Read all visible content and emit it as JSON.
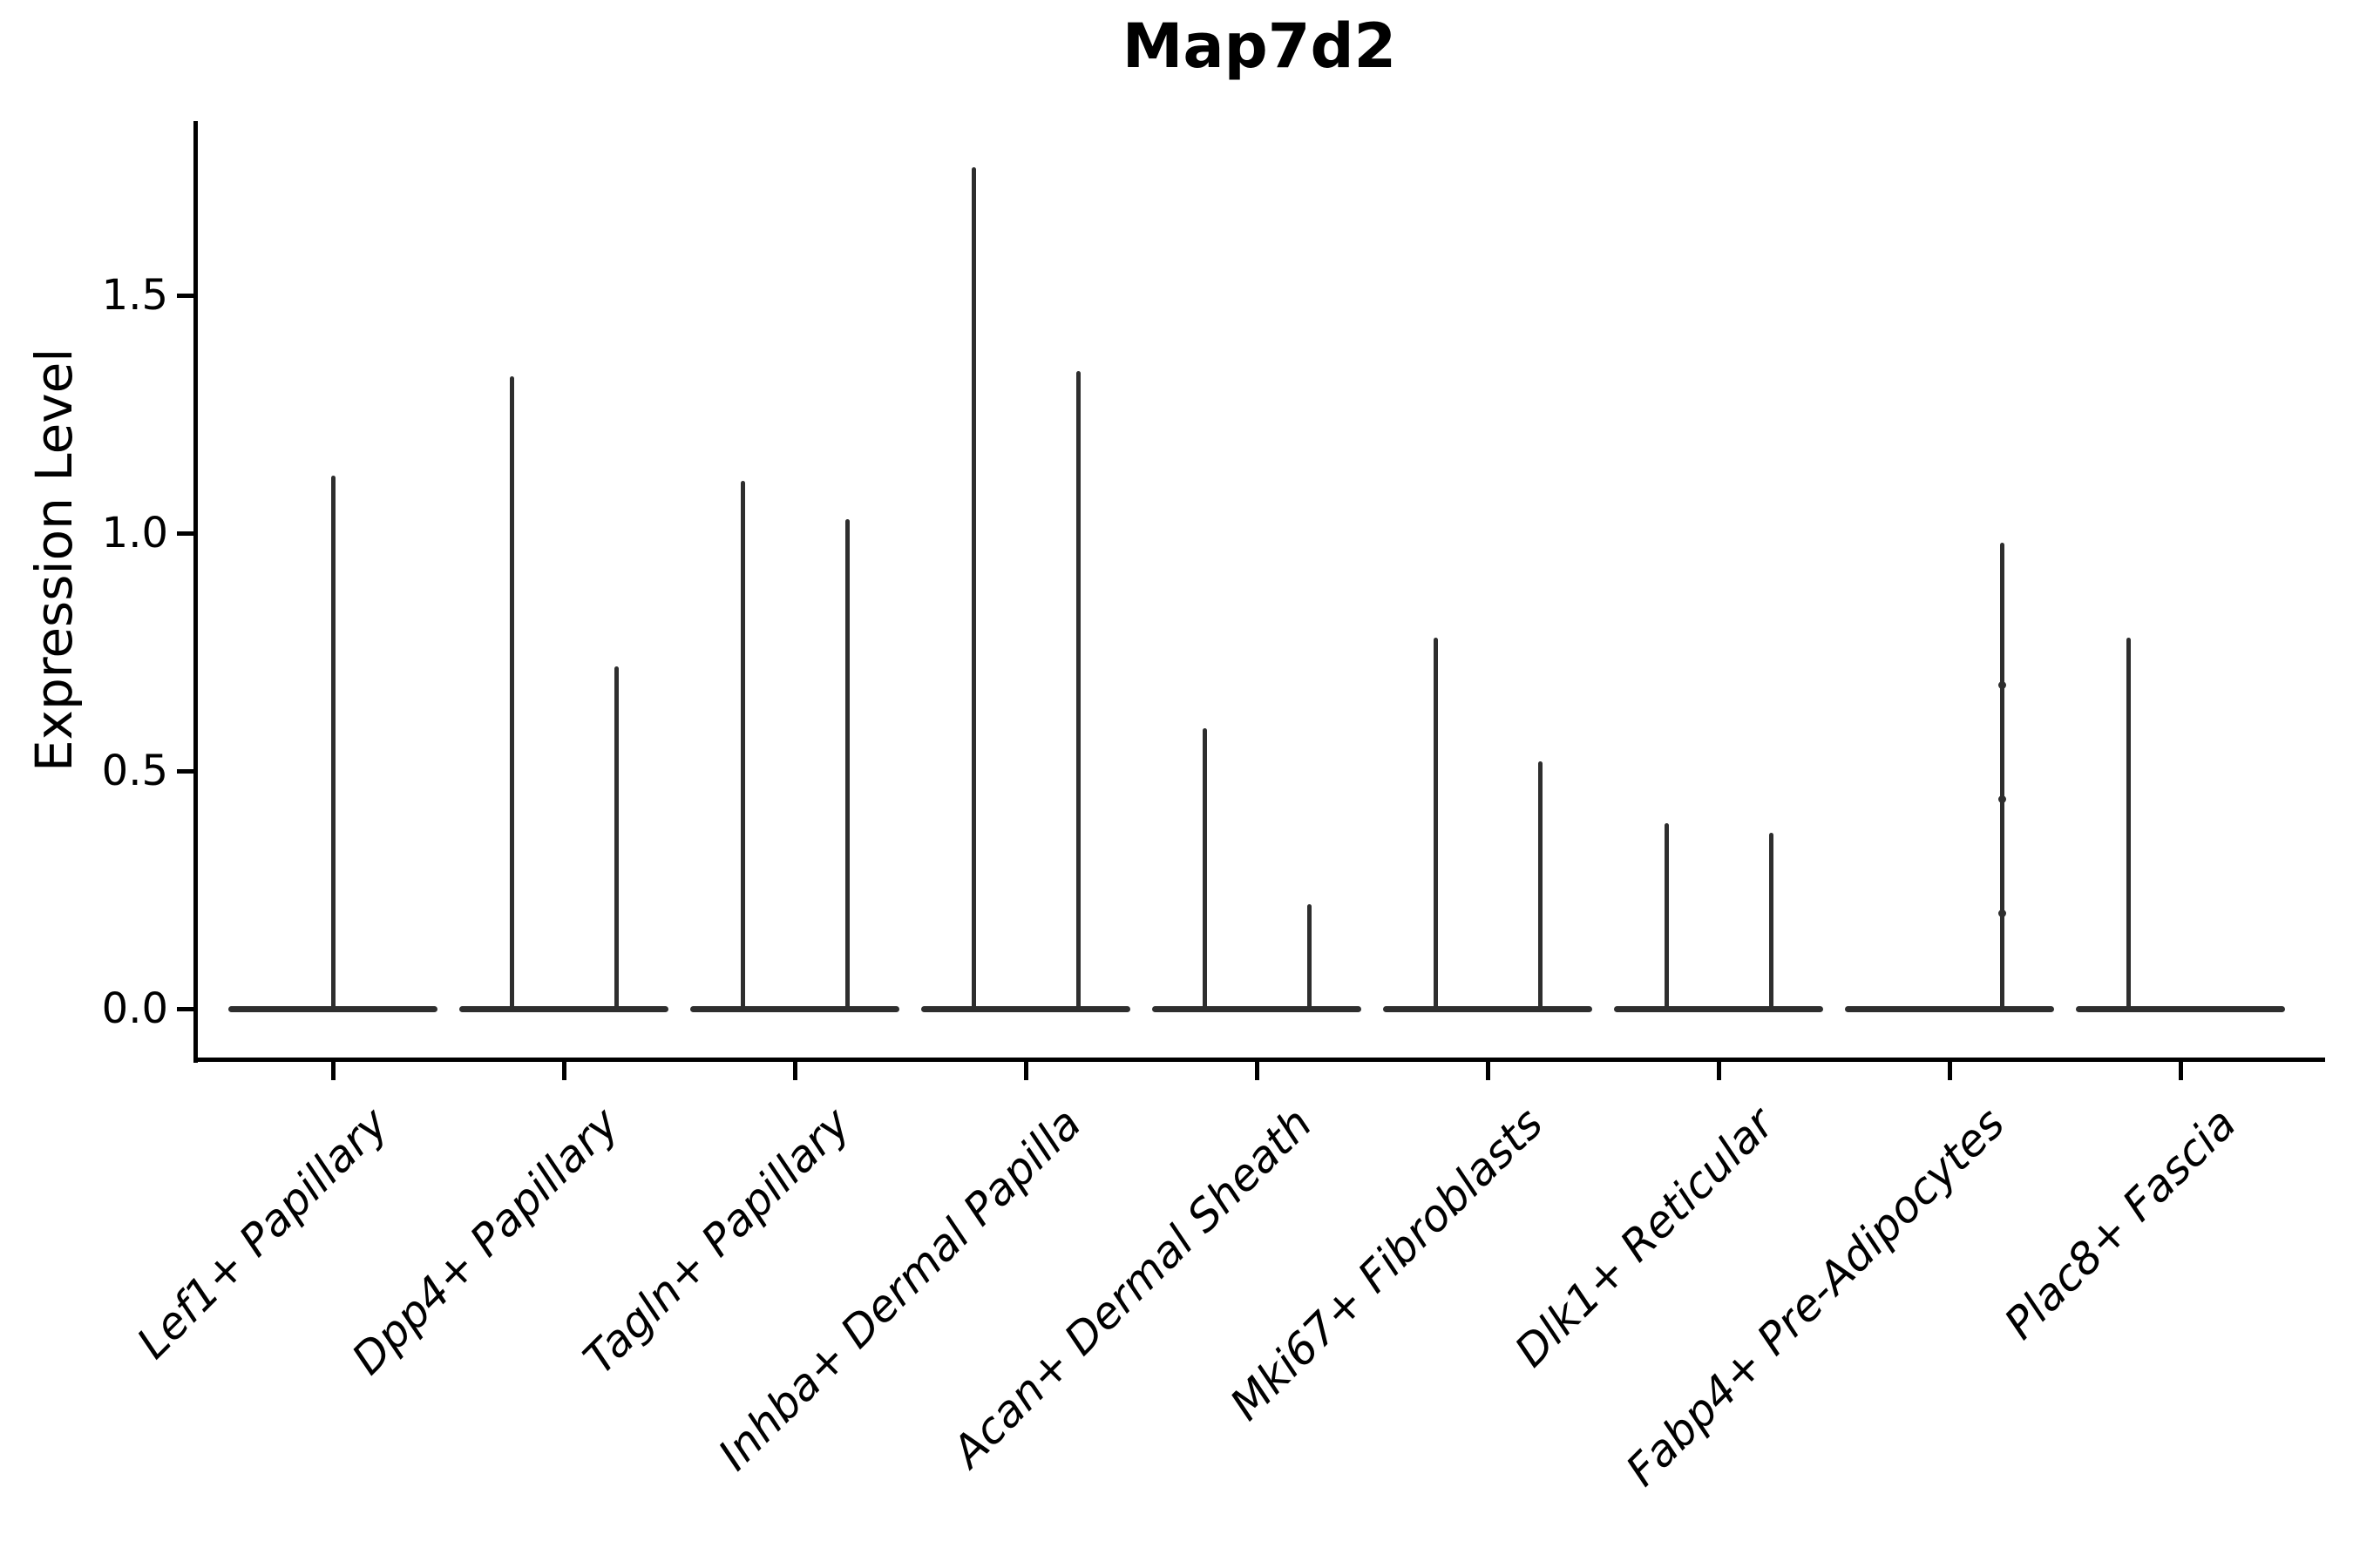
{
  "chart_data": {
    "type": "violin",
    "title": "Map7d2",
    "ylabel": "Expression Level",
    "ylim": [
      -0.11,
      1.86
    ],
    "yticks": [
      0.0,
      0.5,
      1.0,
      1.5
    ],
    "ytick_labels": [
      "0.0",
      "0.5",
      "1.0",
      "1.5"
    ],
    "grid": false,
    "legend": "none",
    "categories": [
      "Lef1+ Papillary",
      "Dpp4+ Papillary",
      "Tagln+ Papillary",
      "Inhba+ Dermal Papilla",
      "Acan+ Dermal Sheath",
      "Mki67+ Fibroblasts",
      "Dlk1+ Reticular",
      "Fabp4+ Pre-Adipocytes",
      "Plac8+ Fascia"
    ],
    "violins": [
      {
        "category": "Lef1+ Papillary",
        "split": false,
        "groups": [
          {
            "position": "center",
            "max": 1.12,
            "dots": []
          }
        ]
      },
      {
        "category": "Dpp4+ Papillary",
        "split": true,
        "groups": [
          {
            "position": "left",
            "max": 1.33,
            "dots": []
          },
          {
            "position": "right",
            "max": 0.72,
            "dots": []
          }
        ]
      },
      {
        "category": "Tagln+ Papillary",
        "split": true,
        "groups": [
          {
            "position": "left",
            "max": 1.11,
            "dots": []
          },
          {
            "position": "right",
            "max": 1.03,
            "dots": []
          }
        ]
      },
      {
        "category": "Inhba+ Dermal Papilla",
        "split": true,
        "groups": [
          {
            "position": "left",
            "max": 1.77,
            "dots": []
          },
          {
            "position": "right",
            "max": 1.34,
            "dots": []
          }
        ]
      },
      {
        "category": "Acan+ Dermal Sheath",
        "split": true,
        "groups": [
          {
            "position": "left",
            "max": 0.59,
            "dots": []
          },
          {
            "position": "right",
            "max": 0.22,
            "dots": []
          }
        ]
      },
      {
        "category": "Mki67+ Fibroblasts",
        "split": true,
        "groups": [
          {
            "position": "left",
            "max": 0.78,
            "dots": []
          },
          {
            "position": "right",
            "max": 0.52,
            "dots": []
          }
        ]
      },
      {
        "category": "Dlk1+ Reticular",
        "split": true,
        "groups": [
          {
            "position": "left",
            "max": 0.39,
            "dots": []
          },
          {
            "position": "right",
            "max": 0.37,
            "dots": []
          }
        ]
      },
      {
        "category": "Fabp4+ Pre-Adipocytes",
        "split": true,
        "groups": [
          {
            "position": "left",
            "max": 0.0,
            "dots": []
          },
          {
            "position": "right",
            "max": 0.98,
            "dots": [
              0.68,
              0.44,
              0.2
            ]
          }
        ]
      },
      {
        "category": "Plac8+ Fascia",
        "split": true,
        "groups": [
          {
            "position": "left",
            "max": 0.78,
            "dots": []
          },
          {
            "position": "right",
            "max": 0.0,
            "dots": []
          }
        ]
      }
    ],
    "colors": {
      "violin_line": "#2e2e2e",
      "axis": "#000000",
      "background": "#ffffff"
    },
    "notes": "Flat violins at 0 with thin max-expression spikes; no fill visible; left and bottom spines only."
  }
}
